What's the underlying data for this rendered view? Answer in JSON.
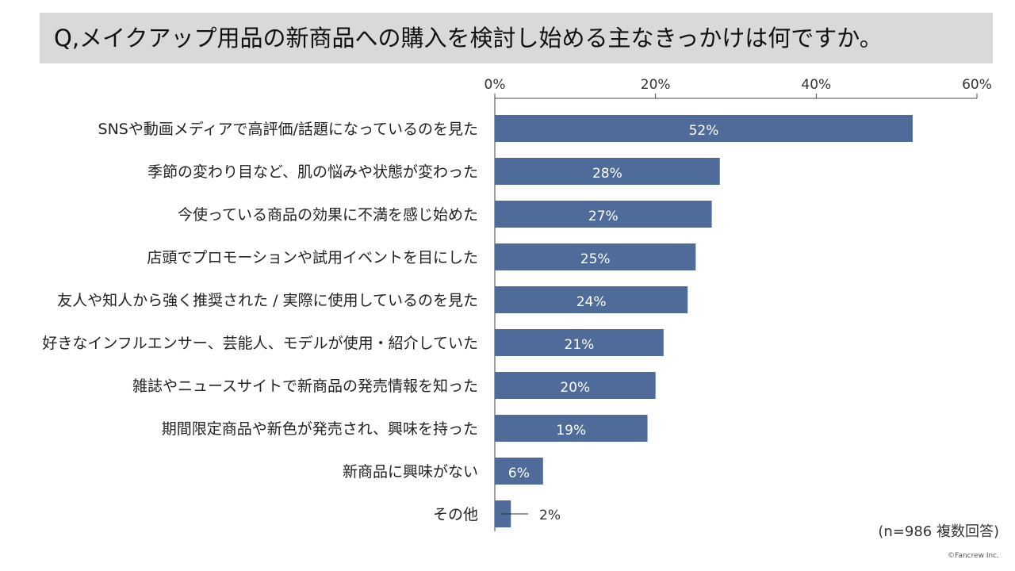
{
  "title": "Q,メイクアップ用品の新商品への購入を検討し始める主なきっかけは何ですか。",
  "note": "(n=986 複数回答)",
  "credit": "©Fancrew Inc.",
  "colors": {
    "bar": "#4f6b9a",
    "label_inside": "#ffffff",
    "label_outside": "#333333"
  },
  "chart_data": {
    "type": "bar",
    "orientation": "horizontal",
    "categories": [
      "SNSや動画メディアで高評価/話題になっているのを見た",
      "季節の変わり目など、肌の悩みや状態が変わった",
      "今使っている商品の効果に不満を感じ始めた",
      "店頭でプロモーションや試用イベントを目にした",
      "友人や知人から強く推奨された / 実際に使用しているのを見た",
      "好きなインフルエンサー、芸能人、モデルが使用・紹介していた",
      "雑誌やニュースサイトで新商品の発売情報を知った",
      "期間限定商品や新色が発売され、興味を持った",
      "新商品に興味がない",
      "その他"
    ],
    "values": [
      52,
      28,
      27,
      25,
      24,
      21,
      20,
      19,
      6,
      2
    ],
    "value_labels": [
      "52%",
      "28%",
      "27%",
      "25%",
      "24%",
      "21%",
      "20%",
      "19%",
      "6%",
      "2%"
    ],
    "xlim": [
      0,
      60
    ],
    "ticks": [
      0,
      20,
      40,
      60
    ],
    "tick_labels": [
      "0%",
      "20%",
      "40%",
      "60%"
    ],
    "axis_position": "top",
    "grid": false,
    "legend": false
  }
}
